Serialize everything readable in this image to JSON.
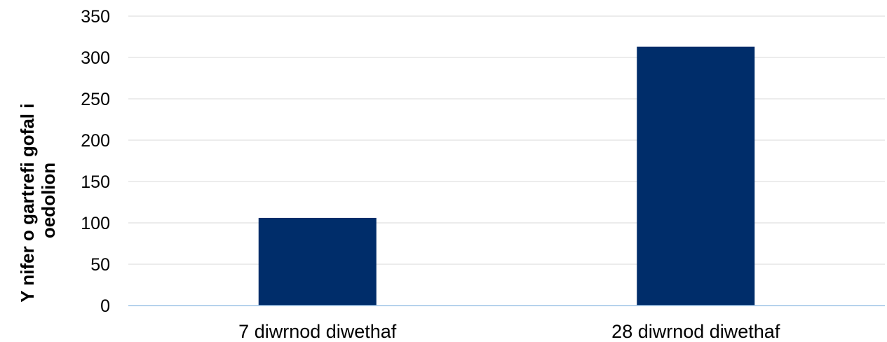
{
  "chart_data": {
    "type": "bar",
    "categories": [
      "7 diwrnod diwethaf",
      "28 diwrnod diwethaf"
    ],
    "values": [
      106,
      313
    ],
    "title": "",
    "xlabel": "",
    "ylabel_lines": [
      "Y nifer o gartrefi gofal i",
      "oedolion"
    ],
    "ylim": [
      0,
      350
    ],
    "yticks": [
      0,
      50,
      100,
      150,
      200,
      250,
      300,
      350
    ],
    "grid": true,
    "legend": "none",
    "bar_color": "#002d6a",
    "grid_color": "#d9d9d9",
    "axis_color": "#9dc3e6"
  }
}
